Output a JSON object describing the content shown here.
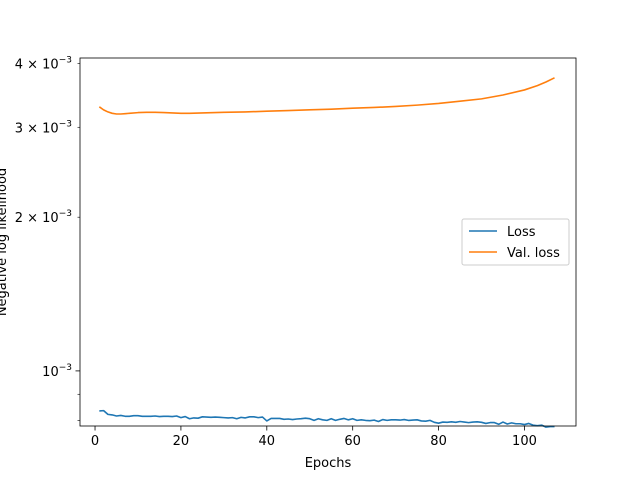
{
  "chart_data": {
    "type": "line",
    "title": "",
    "xlabel": "Epochs",
    "ylabel": "Negative log likelihood",
    "xlim": [
      -3.5,
      112
    ],
    "ylim": [
      0.00078,
      0.0041
    ],
    "yscale": "log",
    "grid": false,
    "legend_position": "center-right",
    "x_ticks": [
      {
        "value": 0,
        "label": "0"
      },
      {
        "value": 20,
        "label": "20"
      },
      {
        "value": 40,
        "label": "40"
      },
      {
        "value": 60,
        "label": "60"
      },
      {
        "value": 80,
        "label": "80"
      },
      {
        "value": 100,
        "label": "100"
      }
    ],
    "y_major_ticks": [
      {
        "value": 0.001,
        "base": "10",
        "exp": "−3"
      }
    ],
    "y_minor_ticks": [
      {
        "value": 0.002,
        "mant": "2",
        "exp": "−3"
      },
      {
        "value": 0.003,
        "mant": "3",
        "exp": "−3"
      },
      {
        "value": 0.004,
        "mant": "4",
        "exp": "−3"
      }
    ],
    "y_unlabeled_minor": [
      0.0008,
      0.0009
    ],
    "series": [
      {
        "name": "Loss",
        "color": "#1f77b4",
        "x": [
          1,
          2,
          3,
          4,
          5,
          6,
          7,
          8,
          9,
          10,
          11,
          12,
          13,
          14,
          15,
          16,
          17,
          18,
          19,
          20,
          21,
          22,
          23,
          24,
          25,
          26,
          27,
          28,
          29,
          30,
          31,
          32,
          33,
          34,
          35,
          36,
          37,
          38,
          39,
          40,
          41,
          42,
          43,
          44,
          45,
          46,
          47,
          48,
          49,
          50,
          51,
          52,
          53,
          54,
          55,
          56,
          57,
          58,
          59,
          60,
          61,
          62,
          63,
          64,
          65,
          66,
          67,
          68,
          69,
          70,
          71,
          72,
          73,
          74,
          75,
          76,
          77,
          78,
          79,
          80,
          81,
          82,
          83,
          84,
          85,
          86,
          87,
          88,
          89,
          90,
          91,
          92,
          93,
          94,
          95,
          96,
          97,
          98,
          99,
          100,
          101,
          102,
          103,
          104,
          105,
          106,
          107
        ],
        "y": [
          0.000835,
          0.000836,
          0.000822,
          0.00082,
          0.000816,
          0.000818,
          0.000815,
          0.000815,
          0.000817,
          0.000817,
          0.000815,
          0.000815,
          0.000815,
          0.000816,
          0.000814,
          0.000815,
          0.000815,
          0.000814,
          0.000816,
          0.00081,
          0.000814,
          0.000806,
          0.000809,
          0.000808,
          0.000813,
          0.000812,
          0.000811,
          0.000812,
          0.000811,
          0.00081,
          0.000809,
          0.00081,
          0.000806,
          0.000811,
          0.000809,
          0.000813,
          0.000813,
          0.00081,
          0.000812,
          0.000798,
          0.000807,
          0.000807,
          0.000807,
          0.000804,
          0.000805,
          0.000803,
          0.000805,
          0.000806,
          0.000808,
          0.000806,
          0.0008,
          0.000806,
          0.000802,
          0.0008,
          0.000806,
          0.0008,
          0.000804,
          0.000807,
          0.000802,
          0.000806,
          0.0008,
          0.000802,
          0.0008,
          0.000799,
          0.000801,
          0.000796,
          0.000803,
          0.0008,
          0.000802,
          0.000802,
          0.000801,
          0.000803,
          0.0008,
          0.000801,
          0.000802,
          0.000798,
          0.000797,
          0.0008,
          0.000793,
          0.00079,
          0.000794,
          0.000793,
          0.000795,
          0.000793,
          0.000796,
          0.000794,
          0.000792,
          0.000794,
          0.000795,
          0.000793,
          0.000789,
          0.000792,
          0.000792,
          0.000786,
          0.000794,
          0.000787,
          0.000791,
          0.000788,
          0.000788,
          0.000785,
          0.000789,
          0.000783,
          0.000781,
          0.000783,
          0.000776,
          0.000778,
          0.000778
        ]
      },
      {
        "name": "Val. loss",
        "color": "#ff7f0e",
        "x": [
          1,
          2,
          3,
          4,
          5,
          6,
          7,
          8,
          10,
          12,
          14,
          16,
          18,
          20,
          22,
          25,
          28,
          30,
          35,
          40,
          45,
          50,
          55,
          60,
          65,
          70,
          75,
          80,
          85,
          90,
          95,
          100,
          103,
          105,
          107
        ],
        "y": [
          0.00329,
          0.003245,
          0.003215,
          0.003195,
          0.003185,
          0.003185,
          0.00319,
          0.003195,
          0.003205,
          0.00321,
          0.00321,
          0.003205,
          0.0032,
          0.003195,
          0.003195,
          0.0032,
          0.003205,
          0.00321,
          0.003215,
          0.003225,
          0.003235,
          0.003245,
          0.003255,
          0.00327,
          0.00328,
          0.003295,
          0.003315,
          0.00334,
          0.003375,
          0.00341,
          0.00347,
          0.00355,
          0.00362,
          0.00368,
          0.00375
        ]
      }
    ]
  }
}
